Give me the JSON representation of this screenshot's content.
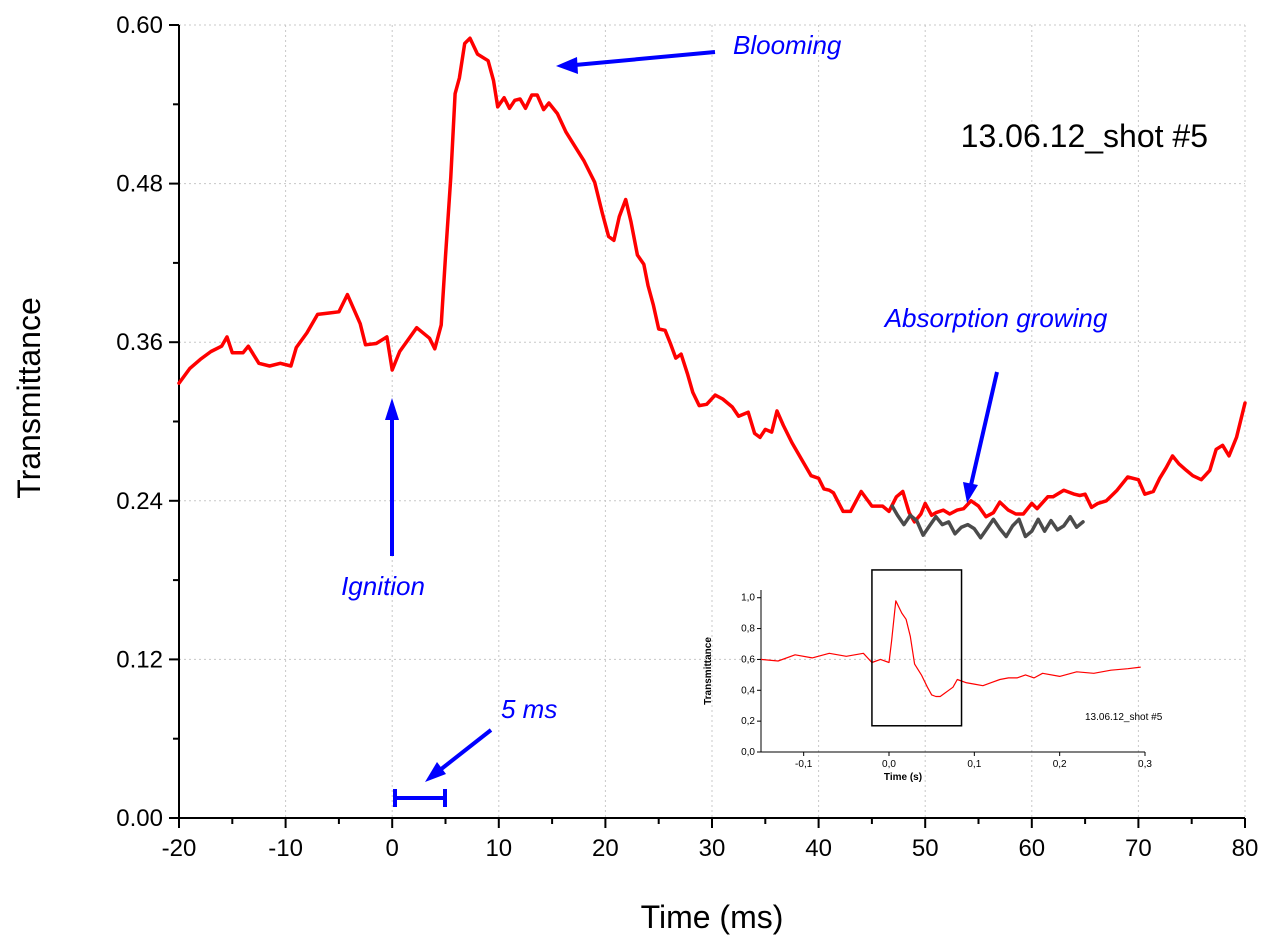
{
  "chart_data": {
    "type": "line",
    "xlabel": "Time (ms)",
    "ylabel": "Transmittance",
    "xlim": [
      -20,
      80
    ],
    "ylim": [
      0,
      0.6
    ],
    "x_ticks": [
      "-20",
      "-10",
      "0",
      "10",
      "20",
      "30",
      "40",
      "50",
      "60",
      "70",
      "80"
    ],
    "y_ticks": [
      "0.00",
      "0.12",
      "0.24",
      "0.36",
      "0.48",
      "0.60"
    ],
    "grid": true,
    "series": [
      {
        "color": "#ff0000",
        "points": [
          [
            -20,
            0.329
          ],
          [
            -19,
            0.34
          ],
          [
            -18,
            0.347
          ],
          [
            -17,
            0.353
          ],
          [
            -16,
            0.357
          ],
          [
            -15.5,
            0.364
          ],
          [
            -15,
            0.352
          ],
          [
            -14,
            0.352
          ],
          [
            -13.5,
            0.357
          ],
          [
            -12.5,
            0.344
          ],
          [
            -11.5,
            0.342
          ],
          [
            -10.5,
            0.344
          ],
          [
            -9.5,
            0.342
          ],
          [
            -9,
            0.356
          ],
          [
            -8,
            0.367
          ],
          [
            -7,
            0.381
          ],
          [
            -6,
            0.382
          ],
          [
            -5,
            0.383
          ],
          [
            -4.2,
            0.396
          ],
          [
            -3,
            0.374
          ],
          [
            -2.5,
            0.358
          ],
          [
            -1.5,
            0.359
          ],
          [
            -0.5,
            0.364
          ],
          [
            0,
            0.339
          ],
          [
            0.7,
            0.353
          ],
          [
            1.5,
            0.362
          ],
          [
            2.3,
            0.371
          ],
          [
            3.5,
            0.363
          ],
          [
            4,
            0.355
          ],
          [
            4.6,
            0.373
          ],
          [
            5,
            0.425
          ],
          [
            5.5,
            0.485
          ],
          [
            5.9,
            0.548
          ],
          [
            6.3,
            0.56
          ],
          [
            6.8,
            0.586
          ],
          [
            7.3,
            0.59
          ],
          [
            8,
            0.578
          ],
          [
            9,
            0.573
          ],
          [
            9.5,
            0.558
          ],
          [
            9.9,
            0.538
          ],
          [
            10.5,
            0.545
          ],
          [
            11,
            0.537
          ],
          [
            11.5,
            0.543
          ],
          [
            12,
            0.544
          ],
          [
            12.5,
            0.537
          ],
          [
            13.1,
            0.547
          ],
          [
            13.6,
            0.547
          ],
          [
            14.2,
            0.536
          ],
          [
            14.7,
            0.541
          ],
          [
            15.5,
            0.533
          ],
          [
            16.3,
            0.519
          ],
          [
            17,
            0.51
          ],
          [
            18,
            0.497
          ],
          [
            19,
            0.481
          ],
          [
            19.7,
            0.458
          ],
          [
            20.3,
            0.44
          ],
          [
            20.8,
            0.437
          ],
          [
            21.3,
            0.455
          ],
          [
            21.9,
            0.468
          ],
          [
            22.4,
            0.451
          ],
          [
            23,
            0.426
          ],
          [
            23.6,
            0.419
          ],
          [
            24,
            0.403
          ],
          [
            24.5,
            0.388
          ],
          [
            25,
            0.37
          ],
          [
            25.6,
            0.369
          ],
          [
            26.1,
            0.359
          ],
          [
            26.6,
            0.348
          ],
          [
            27.1,
            0.351
          ],
          [
            27.7,
            0.336
          ],
          [
            28.2,
            0.322
          ],
          [
            28.8,
            0.312
          ],
          [
            29.5,
            0.313
          ],
          [
            30.3,
            0.32
          ],
          [
            31,
            0.317
          ],
          [
            31.9,
            0.311
          ],
          [
            32.5,
            0.304
          ],
          [
            33.4,
            0.307
          ],
          [
            34,
            0.291
          ],
          [
            34.5,
            0.288
          ],
          [
            35,
            0.294
          ],
          [
            35.6,
            0.292
          ],
          [
            36.1,
            0.308
          ],
          [
            36.7,
            0.297
          ],
          [
            37.5,
            0.284
          ],
          [
            38.5,
            0.27
          ],
          [
            39.3,
            0.259
          ],
          [
            40,
            0.257
          ],
          [
            40.5,
            0.249
          ],
          [
            41,
            0.248
          ],
          [
            41.4,
            0.246
          ],
          [
            41.9,
            0.238
          ],
          [
            42.3,
            0.232
          ],
          [
            43,
            0.232
          ],
          [
            44,
            0.247
          ],
          [
            45,
            0.236
          ],
          [
            46,
            0.236
          ],
          [
            46.6,
            0.232
          ],
          [
            47.3,
            0.243
          ],
          [
            47.9,
            0.247
          ],
          [
            48.5,
            0.231
          ],
          [
            49,
            0.224
          ],
          [
            49.6,
            0.23
          ],
          [
            50,
            0.238
          ],
          [
            50.6,
            0.229
          ],
          [
            51,
            0.231
          ],
          [
            51.7,
            0.233
          ],
          [
            52.3,
            0.23
          ],
          [
            53,
            0.233
          ],
          [
            53.6,
            0.234
          ],
          [
            54.3,
            0.24
          ],
          [
            55,
            0.236
          ],
          [
            55.7,
            0.228
          ],
          [
            56.4,
            0.231
          ],
          [
            57,
            0.239
          ],
          [
            57.8,
            0.233
          ],
          [
            58.5,
            0.23
          ],
          [
            59.2,
            0.23
          ],
          [
            60,
            0.238
          ],
          [
            60.5,
            0.234
          ],
          [
            61.5,
            0.243
          ],
          [
            62,
            0.243
          ],
          [
            63,
            0.248
          ],
          [
            64,
            0.245
          ],
          [
            64.5,
            0.244
          ],
          [
            65,
            0.245
          ],
          [
            65.6,
            0.235
          ],
          [
            66.2,
            0.238
          ],
          [
            67,
            0.24
          ],
          [
            68,
            0.248
          ],
          [
            69,
            0.258
          ],
          [
            70,
            0.256
          ],
          [
            70.6,
            0.245
          ],
          [
            71.4,
            0.247
          ],
          [
            72,
            0.257
          ],
          [
            72.6,
            0.265
          ],
          [
            73.2,
            0.274
          ],
          [
            73.8,
            0.268
          ],
          [
            74.5,
            0.263
          ],
          [
            75.1,
            0.259
          ],
          [
            75.9,
            0.256
          ],
          [
            76.7,
            0.263
          ],
          [
            77.3,
            0.279
          ],
          [
            77.9,
            0.282
          ],
          [
            78.5,
            0.274
          ],
          [
            79.2,
            0.288
          ],
          [
            80,
            0.314
          ]
        ]
      },
      {
        "color": "#4b4b4b",
        "points": [
          [
            46.9,
            0.236
          ],
          [
            47.4,
            0.229
          ],
          [
            48,
            0.222
          ],
          [
            48.6,
            0.229
          ],
          [
            49.2,
            0.225
          ],
          [
            49.8,
            0.214
          ],
          [
            50.4,
            0.221
          ],
          [
            51,
            0.228
          ],
          [
            51.6,
            0.222
          ],
          [
            52.2,
            0.224
          ],
          [
            52.8,
            0.215
          ],
          [
            53.4,
            0.22
          ],
          [
            54,
            0.222
          ],
          [
            54.6,
            0.219
          ],
          [
            55.2,
            0.212
          ],
          [
            55.8,
            0.219
          ],
          [
            56.4,
            0.226
          ],
          [
            57,
            0.219
          ],
          [
            57.6,
            0.213
          ],
          [
            58.2,
            0.221
          ],
          [
            58.8,
            0.226
          ],
          [
            59.4,
            0.213
          ],
          [
            60,
            0.217
          ],
          [
            60.6,
            0.226
          ],
          [
            61.2,
            0.217
          ],
          [
            61.8,
            0.225
          ],
          [
            62.4,
            0.218
          ],
          [
            63,
            0.221
          ],
          [
            63.6,
            0.228
          ],
          [
            64.2,
            0.22
          ],
          [
            64.8,
            0.224
          ]
        ]
      }
    ],
    "annotations": {
      "ignition": "Ignition",
      "blooming": "Blooming",
      "absorption": "Absorption growing",
      "scale_bar": "5 ms",
      "shot": "13.06.12_shot #5"
    },
    "inset": {
      "type": "line",
      "xlabel": "Time (s)",
      "ylabel": "Transmittance",
      "xlim": [
        -0.15,
        0.3
      ],
      "ylim": [
        0,
        1.05
      ],
      "x_ticks": [
        "-0,1",
        "0,0",
        "0,1",
        "0,2",
        "0,3"
      ],
      "y_ticks": [
        "0,0",
        "0,2",
        "0,4",
        "0,6",
        "0,8",
        "1,0"
      ],
      "shot_label": "13.06.12_shot #5",
      "highlight_box": {
        "x_range": [
          -0.02,
          0.085
        ],
        "y_range": [
          0.17,
          1.18
        ]
      },
      "series": [
        {
          "color": "#ff0000",
          "points": [
            [
              -0.15,
              0.6
            ],
            [
              -0.13,
              0.59
            ],
            [
              -0.11,
              0.63
            ],
            [
              -0.09,
              0.61
            ],
            [
              -0.07,
              0.64
            ],
            [
              -0.05,
              0.62
            ],
            [
              -0.03,
              0.64
            ],
            [
              -0.02,
              0.58
            ],
            [
              -0.01,
              0.6
            ],
            [
              0.0,
              0.58
            ],
            [
              0.003,
              0.72
            ],
            [
              0.008,
              0.98
            ],
            [
              0.015,
              0.9
            ],
            [
              0.02,
              0.86
            ],
            [
              0.025,
              0.75
            ],
            [
              0.03,
              0.57
            ],
            [
              0.038,
              0.5
            ],
            [
              0.045,
              0.42
            ],
            [
              0.05,
              0.37
            ],
            [
              0.055,
              0.36
            ],
            [
              0.06,
              0.36
            ],
            [
              0.065,
              0.38
            ],
            [
              0.07,
              0.4
            ],
            [
              0.075,
              0.42
            ],
            [
              0.08,
              0.47
            ],
            [
              0.09,
              0.45
            ],
            [
              0.1,
              0.44
            ],
            [
              0.11,
              0.43
            ],
            [
              0.12,
              0.45
            ],
            [
              0.13,
              0.47
            ],
            [
              0.14,
              0.48
            ],
            [
              0.15,
              0.48
            ],
            [
              0.16,
              0.5
            ],
            [
              0.17,
              0.48
            ],
            [
              0.18,
              0.51
            ],
            [
              0.2,
              0.49
            ],
            [
              0.22,
              0.52
            ],
            [
              0.24,
              0.51
            ],
            [
              0.26,
              0.53
            ],
            [
              0.28,
              0.54
            ],
            [
              0.295,
              0.55
            ]
          ]
        }
      ]
    }
  }
}
